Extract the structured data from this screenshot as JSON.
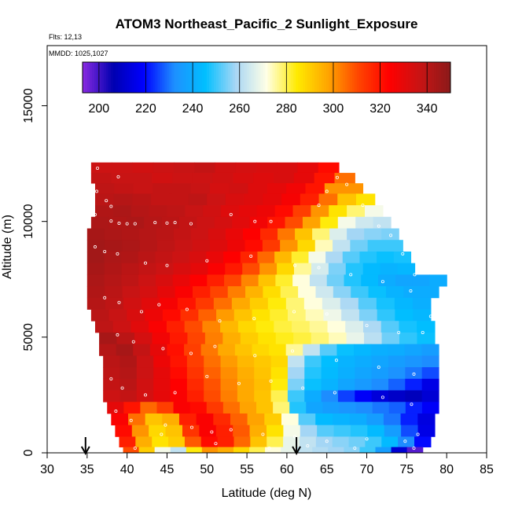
{
  "chart_data": {
    "type": "heatmap",
    "title": "ATOM3 Northeast_Pacific_2 Sunlight_Exposure",
    "notes": [
      "Flts: 12,13",
      "MMDD: 1025,1027"
    ],
    "xlabel": "Latitude (deg N)",
    "ylabel": "Altitude (m)",
    "xlim": [
      30,
      85
    ],
    "ylim": [
      0,
      17600
    ],
    "xticks": [
      "30",
      "35",
      "40",
      "45",
      "50",
      "55",
      "60",
      "65",
      "70",
      "75",
      "80",
      "85"
    ],
    "xtick_values": [
      30,
      35,
      40,
      45,
      50,
      55,
      60,
      65,
      70,
      75,
      80,
      85
    ],
    "yticks": [
      "0",
      "5000",
      "10000",
      "15000"
    ],
    "ytick_values": [
      0,
      5000,
      10000,
      15000
    ],
    "colorbar": {
      "min": 193,
      "max": 350,
      "ticks": [
        "200",
        "220",
        "240",
        "260",
        "280",
        "300",
        "320",
        "340"
      ],
      "tick_values": [
        200,
        220,
        240,
        260,
        280,
        300,
        320,
        340
      ],
      "colors": [
        "#8a2be2",
        "#0000b0",
        "#0000ff",
        "#1e90ff",
        "#00bfff",
        "#a9d7f5",
        "#ffffe6",
        "#ffea00",
        "#ffa500",
        "#ff4500",
        "#ff0000",
        "#c81414",
        "#8b1a1a"
      ]
    },
    "arrows_x": [
      34.8,
      61.2
    ],
    "altitude_bands": [
      {
        "alt": [
          12100,
          12550
        ],
        "lat": [
          35.5,
          66.5
        ],
        "values": [
          336,
          336,
          335,
          336,
          337,
          338,
          335,
          334,
          333,
          333,
          330,
          322
        ]
      },
      {
        "alt": [
          11650,
          12100
        ],
        "lat": [
          35.5,
          68.5
        ],
        "values": [
          338,
          337,
          337,
          335,
          336,
          336,
          335,
          333,
          332,
          333,
          330,
          320,
          305
        ]
      },
      {
        "alt": [
          11200,
          11650
        ],
        "lat": [
          36,
          69.5
        ],
        "values": [
          339,
          338,
          337,
          338,
          338,
          337,
          334,
          335,
          332,
          330,
          327,
          320,
          300,
          300
        ]
      },
      {
        "alt": [
          10700,
          11200
        ],
        "lat": [
          36,
          71
        ],
        "values": [
          340,
          341,
          340,
          338,
          338,
          339,
          336,
          333,
          332,
          330,
          326,
          318,
          305,
          292,
          286
        ]
      },
      {
        "alt": [
          10200,
          10700
        ],
        "lat": [
          36,
          72
        ],
        "values": [
          342,
          343,
          341,
          340,
          339,
          337,
          335,
          332,
          330,
          328,
          322,
          312,
          300,
          286,
          278,
          270
        ]
      },
      {
        "alt": [
          9700,
          10200
        ],
        "lat": [
          35.5,
          73
        ],
        "values": [
          343,
          342,
          343,
          341,
          340,
          338,
          336,
          334,
          331,
          327,
          320,
          310,
          298,
          284,
          270,
          264,
          262
        ]
      },
      {
        "alt": [
          9200,
          9700
        ],
        "lat": [
          35,
          74
        ],
        "values": [
          344,
          343,
          342,
          341,
          340,
          338,
          336,
          333,
          329,
          324,
          316,
          304,
          292,
          278,
          266,
          258,
          256,
          255
        ]
      },
      {
        "alt": [
          8700,
          9200
        ],
        "lat": [
          35,
          74.5
        ],
        "values": [
          345,
          344,
          343,
          341,
          339,
          337,
          335,
          332,
          328,
          322,
          313,
          300,
          288,
          274,
          262,
          254,
          250,
          250
        ]
      },
      {
        "alt": [
          8200,
          8700
        ],
        "lat": [
          35,
          75.5
        ],
        "values": [
          345,
          343,
          342,
          340,
          338,
          336,
          333,
          329,
          324,
          317,
          306,
          294,
          282,
          270,
          259,
          252,
          248,
          246,
          247
        ]
      },
      {
        "alt": [
          7700,
          8200
        ],
        "lat": [
          35,
          76
        ],
        "values": [
          344,
          342,
          340,
          338,
          336,
          333,
          330,
          325,
          319,
          310,
          300,
          288,
          276,
          265,
          255,
          248,
          244,
          242,
          243
        ]
      },
      {
        "alt": [
          7200,
          7700
        ],
        "lat": [
          35,
          80
        ],
        "values": [
          343,
          341,
          339,
          336,
          333,
          329,
          324,
          318,
          311,
          302,
          292,
          282,
          272,
          262,
          254,
          248,
          244,
          240,
          238,
          238,
          240
        ]
      },
      {
        "alt": [
          6700,
          7200
        ],
        "lat": [
          35,
          79
        ],
        "values": [
          342,
          340,
          337,
          334,
          330,
          325,
          318,
          311,
          303,
          295,
          287,
          280,
          272,
          264,
          256,
          250,
          246,
          242,
          240,
          240
        ]
      },
      {
        "alt": [
          6200,
          6700
        ],
        "lat": [
          35,
          78
        ],
        "values": [
          341,
          339,
          335,
          331,
          326,
          320,
          313,
          305,
          297,
          290,
          284,
          278,
          272,
          266,
          259,
          252,
          247,
          243,
          241
        ]
      },
      {
        "alt": [
          5700,
          6200
        ],
        "lat": [
          35.5,
          78
        ],
        "values": [
          340,
          337,
          333,
          328,
          322,
          315,
          307,
          299,
          292,
          286,
          282,
          278,
          274,
          269,
          262,
          255,
          249,
          245,
          243
        ]
      },
      {
        "alt": [
          5200,
          5700
        ],
        "lat": [
          36,
          78.5
        ],
        "values": [
          339,
          336,
          331,
          325,
          318,
          310,
          302,
          294,
          288,
          284,
          281,
          279,
          276,
          272,
          266,
          259,
          252,
          247,
          245
        ]
      },
      {
        "alt": [
          4700,
          5200
        ],
        "lat": [
          36.5,
          78.5
        ],
        "values": [
          344,
          340,
          334,
          327,
          319,
          311,
          303,
          296,
          290,
          286,
          283,
          281,
          278,
          274,
          268,
          261,
          254,
          249,
          246
        ]
      },
      {
        "alt": [
          4200,
          4700
        ],
        "lat": [
          36.5,
          79
        ],
        "values": [
          341,
          344,
          338,
          330,
          321,
          312,
          304,
          297,
          292,
          288,
          286,
          276,
          262,
          252,
          246,
          243,
          241,
          240,
          238,
          236
        ]
      },
      {
        "alt": [
          3700,
          4200
        ],
        "lat": [
          37,
          79
        ],
        "values": [
          340,
          342,
          336,
          328,
          320,
          312,
          305,
          299,
          294,
          291,
          288,
          262,
          250,
          245,
          242,
          240,
          238,
          236,
          234,
          232
        ]
      },
      {
        "alt": [
          3200,
          3700
        ],
        "lat": [
          37,
          79
        ],
        "values": [
          339,
          341,
          336,
          330,
          322,
          314,
          307,
          301,
          296,
          292,
          286,
          258,
          248,
          244,
          241,
          238,
          236,
          233,
          230,
          226
        ]
      },
      {
        "alt": [
          2700,
          3200
        ],
        "lat": [
          37,
          79
        ],
        "values": [
          338,
          340,
          335,
          330,
          324,
          316,
          309,
          302,
          297,
          293,
          284,
          255,
          246,
          242,
          238,
          235,
          232,
          228,
          222,
          215
        ]
      },
      {
        "alt": [
          2200,
          2700
        ],
        "lat": [
          37,
          79
        ],
        "values": [
          336,
          338,
          334,
          330,
          325,
          318,
          310,
          303,
          297,
          292,
          280,
          250,
          240,
          232,
          225,
          218,
          213,
          210,
          208,
          212
        ]
      },
      {
        "alt": [
          1700,
          2200
        ],
        "lat": [
          37.5,
          79
        ],
        "values": [
          330,
          320,
          306,
          312,
          325,
          322,
          313,
          305,
          298,
          292,
          278,
          248,
          238,
          236,
          234,
          232,
          230,
          228,
          222,
          218
        ]
      },
      {
        "alt": [
          1200,
          1700
        ],
        "lat": [
          38,
          78.5
        ],
        "values": [
          325,
          305,
          292,
          296,
          318,
          325,
          316,
          307,
          298,
          290,
          272,
          252,
          244,
          242,
          240,
          236,
          230,
          222,
          214
        ]
      },
      {
        "alt": [
          700,
          1200
        ],
        "lat": [
          38.5,
          78.5
        ],
        "values": [
          322,
          300,
          288,
          292,
          314,
          325,
          318,
          308,
          296,
          286,
          270,
          258,
          252,
          250,
          248,
          244,
          236,
          226,
          215
        ]
      },
      {
        "alt": [
          250,
          700
        ],
        "lat": [
          39,
          78
        ],
        "values": [
          318,
          296,
          286,
          290,
          308,
          322,
          318,
          306,
          292,
          280,
          268,
          262,
          258,
          256,
          254,
          250,
          244,
          232,
          220
        ]
      },
      {
        "alt": [
          0,
          250
        ],
        "lat": [
          39.5,
          77
        ],
        "values": [
          310,
          290,
          270,
          262,
          284,
          300,
          296,
          288,
          280,
          272,
          268,
          262,
          260,
          258,
          256,
          250,
          236,
          212,
          198
        ]
      }
    ],
    "points": [
      [
        36.3,
        12300
      ],
      [
        38.9,
        11930
      ],
      [
        36.2,
        11300
      ],
      [
        37.4,
        10900
      ],
      [
        38,
        10650
      ],
      [
        36,
        10300
      ],
      [
        38,
        10020
      ],
      [
        39,
        9920
      ],
      [
        40,
        9900
      ],
      [
        41,
        9900
      ],
      [
        43.5,
        9950
      ],
      [
        45,
        9930
      ],
      [
        46,
        9950
      ],
      [
        48,
        9900
      ],
      [
        53,
        10300
      ],
      [
        56,
        10000
      ],
      [
        58,
        10000
      ],
      [
        64,
        10700
      ],
      [
        65,
        11300
      ],
      [
        66.3,
        11900
      ],
      [
        67.5,
        11600
      ],
      [
        69.5,
        10700
      ],
      [
        71.5,
        9800
      ],
      [
        73,
        9400
      ],
      [
        74.5,
        8600
      ],
      [
        76,
        7700
      ],
      [
        79.5,
        7100
      ],
      [
        78,
        5900
      ],
      [
        36,
        8900
      ],
      [
        37.2,
        8700
      ],
      [
        38.8,
        8600
      ],
      [
        42.3,
        8200
      ],
      [
        45,
        8100
      ],
      [
        50,
        8300
      ],
      [
        55.5,
        8500
      ],
      [
        61,
        8100
      ],
      [
        64,
        8000
      ],
      [
        68,
        7700
      ],
      [
        72,
        7400
      ],
      [
        75.5,
        7000
      ],
      [
        37.2,
        6700
      ],
      [
        39,
        6500
      ],
      [
        41.8,
        6100
      ],
      [
        44,
        6400
      ],
      [
        47.5,
        6200
      ],
      [
        51.6,
        5700
      ],
      [
        55.9,
        5800
      ],
      [
        60.9,
        6100
      ],
      [
        65,
        6000
      ],
      [
        70,
        5500
      ],
      [
        74,
        5200
      ],
      [
        77,
        5200
      ],
      [
        38.8,
        5100
      ],
      [
        40.8,
        4800
      ],
      [
        44.5,
        4500
      ],
      [
        48,
        4300
      ],
      [
        51,
        4600
      ],
      [
        56,
        4200
      ],
      [
        60.7,
        4400
      ],
      [
        66.2,
        4000
      ],
      [
        71.5,
        3700
      ],
      [
        75.9,
        3400
      ],
      [
        38,
        3200
      ],
      [
        39.4,
        2800
      ],
      [
        42.3,
        2500
      ],
      [
        46,
        2600
      ],
      [
        50,
        3300
      ],
      [
        54,
        3000
      ],
      [
        58,
        3100
      ],
      [
        62,
        2800
      ],
      [
        66,
        2600
      ],
      [
        72,
        2400
      ],
      [
        75.6,
        2100
      ],
      [
        38.6,
        1800
      ],
      [
        40.5,
        1400
      ],
      [
        44.8,
        1200
      ],
      [
        48.1,
        1100
      ],
      [
        50.6,
        900
      ],
      [
        53,
        1000
      ],
      [
        57,
        800
      ],
      [
        61,
        700
      ],
      [
        65,
        500
      ],
      [
        70,
        600
      ],
      [
        74.8,
        500
      ],
      [
        76.4,
        800
      ],
      [
        78.4,
        300
      ],
      [
        75.9,
        200
      ],
      [
        41,
        200
      ],
      [
        44.3,
        800
      ],
      [
        51.1,
        400
      ],
      [
        57.8,
        200
      ],
      [
        62.6,
        300
      ],
      [
        68.5,
        200
      ]
    ]
  }
}
